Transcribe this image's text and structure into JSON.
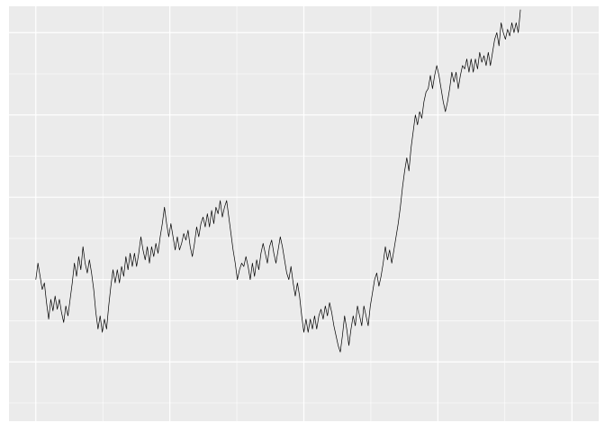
{
  "chart_data": {
    "type": "line",
    "title": "",
    "xlabel": "",
    "ylabel": "",
    "grid": true,
    "legend": "none",
    "colors": {
      "panel": "#ebebeb",
      "grid": "#ffffff",
      "line": "#000000",
      "page": "#ffffff"
    },
    "xlim": [
      -0.05,
      1.05
    ],
    "ylim": [
      -0.18,
      1.08
    ],
    "x_major_breaks": [
      0,
      0.25,
      0.5,
      0.75,
      1
    ],
    "y_major_breaks": [
      0,
      0.25,
      0.5,
      0.75,
      1
    ],
    "series": [
      {
        "values": [
          [
            0.0,
            0.25
          ],
          [
            0.004,
            0.3
          ],
          [
            0.008,
            0.26
          ],
          [
            0.012,
            0.22
          ],
          [
            0.016,
            0.24
          ],
          [
            0.02,
            0.18
          ],
          [
            0.024,
            0.13
          ],
          [
            0.028,
            0.19
          ],
          [
            0.032,
            0.155
          ],
          [
            0.036,
            0.2
          ],
          [
            0.04,
            0.16
          ],
          [
            0.044,
            0.19
          ],
          [
            0.048,
            0.15
          ],
          [
            0.052,
            0.12
          ],
          [
            0.056,
            0.17
          ],
          [
            0.06,
            0.14
          ],
          [
            0.064,
            0.19
          ],
          [
            0.068,
            0.24
          ],
          [
            0.072,
            0.3
          ],
          [
            0.076,
            0.26
          ],
          [
            0.08,
            0.32
          ],
          [
            0.084,
            0.28
          ],
          [
            0.088,
            0.35
          ],
          [
            0.092,
            0.3
          ],
          [
            0.096,
            0.27
          ],
          [
            0.1,
            0.31
          ],
          [
            0.104,
            0.27
          ],
          [
            0.108,
            0.22
          ],
          [
            0.112,
            0.15
          ],
          [
            0.116,
            0.1
          ],
          [
            0.12,
            0.14
          ],
          [
            0.124,
            0.09
          ],
          [
            0.128,
            0.13
          ],
          [
            0.132,
            0.1
          ],
          [
            0.136,
            0.17
          ],
          [
            0.14,
            0.23
          ],
          [
            0.144,
            0.28
          ],
          [
            0.148,
            0.24
          ],
          [
            0.152,
            0.28
          ],
          [
            0.156,
            0.24
          ],
          [
            0.16,
            0.29
          ],
          [
            0.164,
            0.26
          ],
          [
            0.168,
            0.32
          ],
          [
            0.172,
            0.28
          ],
          [
            0.176,
            0.33
          ],
          [
            0.18,
            0.29
          ],
          [
            0.184,
            0.33
          ],
          [
            0.188,
            0.29
          ],
          [
            0.192,
            0.33
          ],
          [
            0.196,
            0.38
          ],
          [
            0.2,
            0.34
          ],
          [
            0.204,
            0.31
          ],
          [
            0.208,
            0.35
          ],
          [
            0.212,
            0.3
          ],
          [
            0.216,
            0.35
          ],
          [
            0.22,
            0.32
          ],
          [
            0.224,
            0.36
          ],
          [
            0.228,
            0.33
          ],
          [
            0.232,
            0.38
          ],
          [
            0.236,
            0.42
          ],
          [
            0.24,
            0.47
          ],
          [
            0.244,
            0.42
          ],
          [
            0.248,
            0.38
          ],
          [
            0.252,
            0.42
          ],
          [
            0.256,
            0.38
          ],
          [
            0.26,
            0.34
          ],
          [
            0.264,
            0.38
          ],
          [
            0.268,
            0.34
          ],
          [
            0.272,
            0.36
          ],
          [
            0.276,
            0.39
          ],
          [
            0.28,
            0.37
          ],
          [
            0.284,
            0.4
          ],
          [
            0.288,
            0.35
          ],
          [
            0.292,
            0.32
          ],
          [
            0.296,
            0.36
          ],
          [
            0.3,
            0.41
          ],
          [
            0.304,
            0.38
          ],
          [
            0.308,
            0.42
          ],
          [
            0.312,
            0.44
          ],
          [
            0.316,
            0.41
          ],
          [
            0.32,
            0.45
          ],
          [
            0.324,
            0.41
          ],
          [
            0.328,
            0.46
          ],
          [
            0.332,
            0.42
          ],
          [
            0.336,
            0.47
          ],
          [
            0.34,
            0.45
          ],
          [
            0.344,
            0.49
          ],
          [
            0.348,
            0.44
          ],
          [
            0.352,
            0.47
          ],
          [
            0.356,
            0.49
          ],
          [
            0.36,
            0.44
          ],
          [
            0.364,
            0.39
          ],
          [
            0.368,
            0.34
          ],
          [
            0.372,
            0.3
          ],
          [
            0.376,
            0.25
          ],
          [
            0.38,
            0.28
          ],
          [
            0.384,
            0.3
          ],
          [
            0.388,
            0.29
          ],
          [
            0.392,
            0.32
          ],
          [
            0.396,
            0.29
          ],
          [
            0.4,
            0.25
          ],
          [
            0.404,
            0.3
          ],
          [
            0.408,
            0.26
          ],
          [
            0.412,
            0.31
          ],
          [
            0.416,
            0.28
          ],
          [
            0.42,
            0.33
          ],
          [
            0.424,
            0.36
          ],
          [
            0.428,
            0.33
          ],
          [
            0.432,
            0.3
          ],
          [
            0.436,
            0.35
          ],
          [
            0.44,
            0.37
          ],
          [
            0.444,
            0.33
          ],
          [
            0.448,
            0.3
          ],
          [
            0.452,
            0.34
          ],
          [
            0.456,
            0.38
          ],
          [
            0.46,
            0.35
          ],
          [
            0.464,
            0.31
          ],
          [
            0.468,
            0.27
          ],
          [
            0.472,
            0.25
          ],
          [
            0.476,
            0.29
          ],
          [
            0.48,
            0.24
          ],
          [
            0.484,
            0.2
          ],
          [
            0.488,
            0.24
          ],
          [
            0.492,
            0.2
          ],
          [
            0.496,
            0.14
          ],
          [
            0.5,
            0.09
          ],
          [
            0.504,
            0.13
          ],
          [
            0.508,
            0.09
          ],
          [
            0.512,
            0.13
          ],
          [
            0.516,
            0.1
          ],
          [
            0.52,
            0.14
          ],
          [
            0.524,
            0.1
          ],
          [
            0.528,
            0.14
          ],
          [
            0.532,
            0.16
          ],
          [
            0.536,
            0.13
          ],
          [
            0.54,
            0.17
          ],
          [
            0.544,
            0.14
          ],
          [
            0.548,
            0.18
          ],
          [
            0.552,
            0.15
          ],
          [
            0.556,
            0.11
          ],
          [
            0.56,
            0.08
          ],
          [
            0.564,
            0.05
          ],
          [
            0.568,
            0.03
          ],
          [
            0.572,
            0.08
          ],
          [
            0.576,
            0.14
          ],
          [
            0.58,
            0.1
          ],
          [
            0.584,
            0.05
          ],
          [
            0.588,
            0.1
          ],
          [
            0.592,
            0.14
          ],
          [
            0.596,
            0.11
          ],
          [
            0.6,
            0.17
          ],
          [
            0.604,
            0.14
          ],
          [
            0.608,
            0.11
          ],
          [
            0.612,
            0.17
          ],
          [
            0.616,
            0.14
          ],
          [
            0.62,
            0.11
          ],
          [
            0.624,
            0.17
          ],
          [
            0.628,
            0.21
          ],
          [
            0.632,
            0.25
          ],
          [
            0.636,
            0.27
          ],
          [
            0.64,
            0.23
          ],
          [
            0.644,
            0.26
          ],
          [
            0.648,
            0.3
          ],
          [
            0.652,
            0.35
          ],
          [
            0.656,
            0.31
          ],
          [
            0.66,
            0.34
          ],
          [
            0.664,
            0.3
          ],
          [
            0.668,
            0.34
          ],
          [
            0.672,
            0.38
          ],
          [
            0.676,
            0.42
          ],
          [
            0.68,
            0.47
          ],
          [
            0.684,
            0.53
          ],
          [
            0.688,
            0.58
          ],
          [
            0.692,
            0.62
          ],
          [
            0.696,
            0.58
          ],
          [
            0.7,
            0.65
          ],
          [
            0.704,
            0.7
          ],
          [
            0.708,
            0.75
          ],
          [
            0.712,
            0.72
          ],
          [
            0.716,
            0.76
          ],
          [
            0.72,
            0.74
          ],
          [
            0.724,
            0.79
          ],
          [
            0.728,
            0.82
          ],
          [
            0.732,
            0.83
          ],
          [
            0.736,
            0.87
          ],
          [
            0.74,
            0.83
          ],
          [
            0.744,
            0.87
          ],
          [
            0.748,
            0.9
          ],
          [
            0.752,
            0.87
          ],
          [
            0.756,
            0.83
          ],
          [
            0.76,
            0.79
          ],
          [
            0.764,
            0.76
          ],
          [
            0.768,
            0.79
          ],
          [
            0.772,
            0.83
          ],
          [
            0.776,
            0.88
          ],
          [
            0.78,
            0.85
          ],
          [
            0.784,
            0.88
          ],
          [
            0.788,
            0.83
          ],
          [
            0.792,
            0.87
          ],
          [
            0.796,
            0.9
          ],
          [
            0.8,
            0.89
          ],
          [
            0.804,
            0.92
          ],
          [
            0.808,
            0.88
          ],
          [
            0.812,
            0.92
          ],
          [
            0.816,
            0.88
          ],
          [
            0.82,
            0.92
          ],
          [
            0.824,
            0.89
          ],
          [
            0.828,
            0.94
          ],
          [
            0.832,
            0.91
          ],
          [
            0.836,
            0.93
          ],
          [
            0.84,
            0.9
          ],
          [
            0.844,
            0.94
          ],
          [
            0.848,
            0.9
          ],
          [
            0.852,
            0.94
          ],
          [
            0.856,
            0.98
          ],
          [
            0.86,
            1.0
          ],
          [
            0.864,
            0.96
          ],
          [
            0.868,
            1.03
          ],
          [
            0.872,
            1.0
          ],
          [
            0.876,
            0.98
          ],
          [
            0.88,
            1.01
          ],
          [
            0.884,
            0.99
          ],
          [
            0.888,
            1.03
          ],
          [
            0.892,
            1.0
          ],
          [
            0.896,
            1.03
          ],
          [
            0.9,
            1.0
          ],
          [
            0.904,
            1.07
          ]
        ]
      }
    ]
  }
}
